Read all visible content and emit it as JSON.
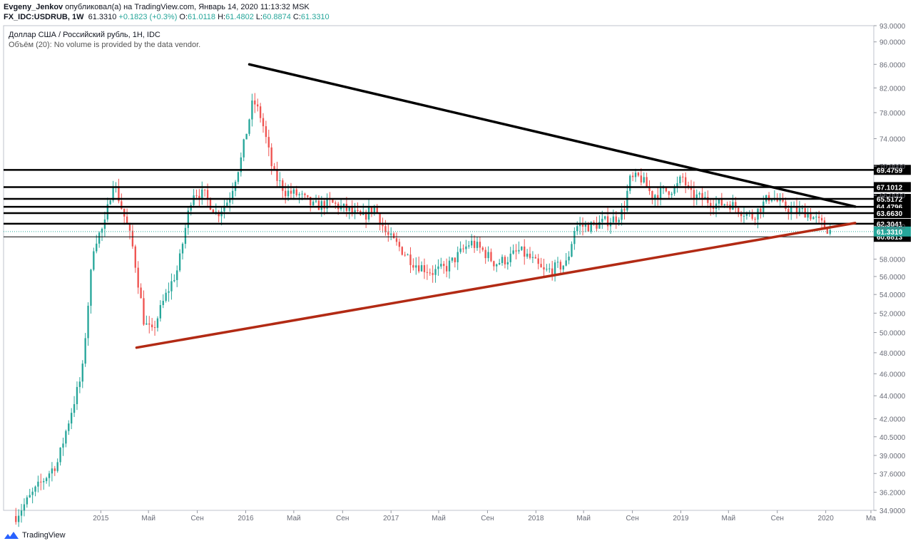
{
  "header": {
    "author": "Evgeny_Jenkov",
    "published": "опубликовал(а) на TradingView.com, Январь 14, 2020 11:13:32 MSK",
    "symbol": "FX_IDC:USDRUB, 1W",
    "last": "61.3310",
    "change": "+0.1823 (+0.3%)",
    "o_label": "O:",
    "o_value": "61.0118",
    "h_label": "H:",
    "h_value": "61.4802",
    "l_label": "L:",
    "l_value": "60.8874",
    "c_label": "C:",
    "c_value": "61.3310"
  },
  "legend": {
    "title": "Доллар США / Российский рубль, 1Н, IDC",
    "volume": "Объём (20): No volume is provided by the data vendor."
  },
  "footer": {
    "brand": "TradingView",
    "icon": "tradingview-logo-icon"
  },
  "colors": {
    "up": "#26a69a",
    "down": "#ef5350",
    "trend_top": "#000000",
    "trend_bottom": "#b22a14",
    "price_tag": "#26a69a",
    "level_tag": "#000000"
  },
  "chart_data": {
    "type": "candlestick",
    "title": "Доллар США / Российский рубль, 1Н, IDC",
    "y_scale": "log",
    "ylim": [
      34.9,
      93.0
    ],
    "y_ticks": [
      "93.0000",
      "90.0000",
      "86.0000",
      "82.0000",
      "78.0000",
      "74.0000",
      "70.0000",
      "66.0000",
      "62.0000",
      "58.0000",
      "56.0000",
      "54.0000",
      "52.0000",
      "50.0000",
      "48.0000",
      "46.0000",
      "44.0000",
      "42.0000",
      "40.5000",
      "39.0000",
      "37.6000",
      "36.2000",
      "34.9000"
    ],
    "x_ticks": [
      "2015",
      "Май",
      "Сен",
      "2016",
      "Май",
      "Сен",
      "2017",
      "Май",
      "Сен",
      "2018",
      "Май",
      "Сен",
      "2019",
      "Май",
      "Сен",
      "2020",
      "Ма"
    ],
    "x_range": [
      "2014-05-01",
      "2020-05-01"
    ],
    "weekly_close_anchors": [
      [
        "2014-06-01",
        34.5
      ],
      [
        "2014-09-15",
        38.5
      ],
      [
        "2014-11-15",
        46.0
      ],
      [
        "2014-12-15",
        60.0
      ],
      [
        "2015-01-10",
        62.0
      ],
      [
        "2015-02-01",
        68.0
      ],
      [
        "2015-03-20",
        60.0
      ],
      [
        "2015-04-20",
        51.0
      ],
      [
        "2015-05-10",
        50.0
      ],
      [
        "2015-06-10",
        53.5
      ],
      [
        "2015-07-15",
        57.0
      ],
      [
        "2015-08-20",
        66.5
      ],
      [
        "2015-09-20",
        66.0
      ],
      [
        "2015-10-20",
        63.5
      ],
      [
        "2015-11-20",
        65.5
      ],
      [
        "2015-12-20",
        71.0
      ],
      [
        "2016-01-20",
        80.0
      ],
      [
        "2016-02-10",
        77.0
      ],
      [
        "2016-03-10",
        69.0
      ],
      [
        "2016-04-10",
        66.5
      ],
      [
        "2016-05-15",
        66.0
      ],
      [
        "2016-06-20",
        64.5
      ],
      [
        "2016-08-01",
        65.0
      ],
      [
        "2016-09-15",
        64.0
      ],
      [
        "2016-10-20",
        63.0
      ],
      [
        "2016-11-20",
        64.5
      ],
      [
        "2016-12-20",
        61.0
      ],
      [
        "2017-01-20",
        59.5
      ],
      [
        "2017-03-01",
        57.5
      ],
      [
        "2017-04-15",
        56.5
      ],
      [
        "2017-05-20",
        57.0
      ],
      [
        "2017-06-20",
        58.5
      ],
      [
        "2017-07-20",
        60.0
      ],
      [
        "2017-08-20",
        59.0
      ],
      [
        "2017-09-20",
        57.5
      ],
      [
        "2017-10-20",
        58.0
      ],
      [
        "2017-11-20",
        59.0
      ],
      [
        "2017-12-20",
        58.0
      ],
      [
        "2018-01-20",
        56.5
      ],
      [
        "2018-02-20",
        57.0
      ],
      [
        "2018-03-20",
        57.5
      ],
      [
        "2018-04-10",
        62.0
      ],
      [
        "2018-05-20",
        62.0
      ],
      [
        "2018-06-20",
        62.5
      ],
      [
        "2018-07-20",
        63.0
      ],
      [
        "2018-08-10",
        64.0
      ],
      [
        "2018-08-25",
        68.0
      ],
      [
        "2018-09-20",
        68.5
      ],
      [
        "2018-10-20",
        66.0
      ],
      [
        "2018-11-20",
        66.5
      ],
      [
        "2018-12-20",
        67.0
      ],
      [
        "2019-01-05",
        68.5
      ],
      [
        "2019-01-25",
        66.0
      ],
      [
        "2019-03-01",
        65.5
      ],
      [
        "2019-04-01",
        64.8
      ],
      [
        "2019-05-01",
        65.0
      ],
      [
        "2019-06-01",
        64.0
      ],
      [
        "2019-07-01",
        63.2
      ],
      [
        "2019-08-15",
        66.0
      ],
      [
        "2019-09-15",
        64.5
      ],
      [
        "2019-10-15",
        64.0
      ],
      [
        "2019-11-15",
        63.8
      ],
      [
        "2019-12-15",
        62.5
      ],
      [
        "2020-01-14",
        61.331
      ]
    ],
    "horizontal_levels": [
      {
        "label": "69.4759",
        "value": 69.4759
      },
      {
        "label": "67.1012",
        "value": 67.1012
      },
      {
        "label": "65.5172",
        "value": 65.5172
      },
      {
        "label": "64.4796",
        "value": 64.4796
      },
      {
        "label": "63.6630",
        "value": 63.663
      },
      {
        "label": "62.3041",
        "value": 62.3041
      },
      {
        "label": "60.6813",
        "value": 60.6813
      }
    ],
    "last_price": {
      "label": "61.3310",
      "value": 61.331
    },
    "trendlines": [
      {
        "name": "descending",
        "from": [
          "2016-01-10",
          86.0
        ],
        "to": [
          "2020-03-15",
          64.5
        ]
      },
      {
        "name": "ascending",
        "from": [
          "2015-04-01",
          48.5
        ],
        "to": [
          "2020-03-15",
          62.4
        ]
      }
    ]
  }
}
